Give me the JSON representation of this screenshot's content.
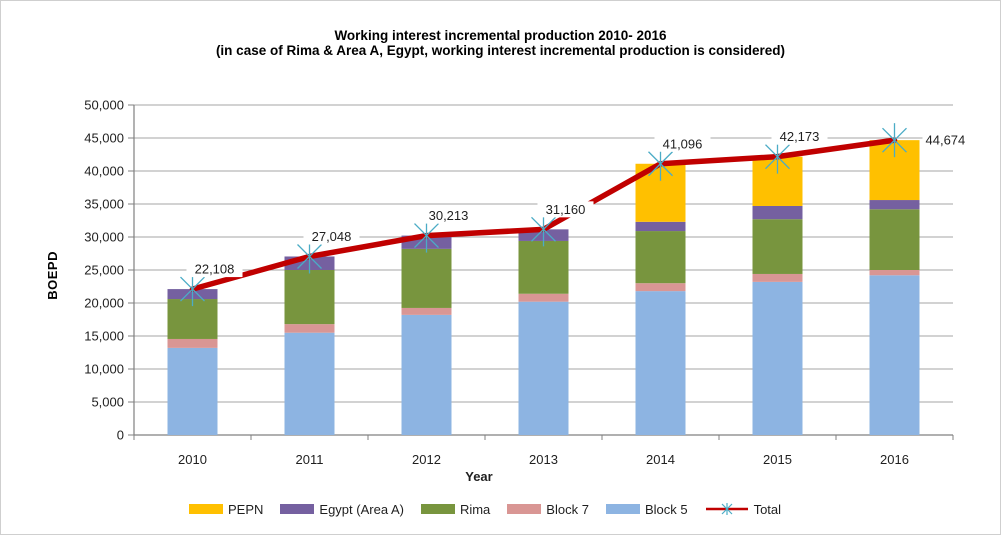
{
  "title": {
    "line1": "Working interest incremental production 2010- 2016",
    "line2": "(in case of Rima & Area A, Egypt, working interest incremental production is considered)"
  },
  "axes": {
    "y_title": "BOEPD",
    "x_title": "Year"
  },
  "chart_data": {
    "type": "bar",
    "subtype": "stacked-bars-with-total-line",
    "title": "Working interest incremental production 2010- 2016",
    "subtitle": "(in case of Rima & Area A, Egypt, working interest incremental production is considered)",
    "categories": [
      "2010",
      "2011",
      "2012",
      "2013",
      "2014",
      "2015",
      "2016"
    ],
    "series": [
      {
        "name": "Block 5",
        "color": "#8DB4E2",
        "values": [
          13200,
          15500,
          18200,
          20200,
          21800,
          23200,
          24200
        ]
      },
      {
        "name": "Block 7",
        "color": "#D99694",
        "values": [
          1350,
          1300,
          1050,
          1200,
          1200,
          1200,
          800
        ]
      },
      {
        "name": "Rima",
        "color": "#78953E",
        "values": [
          6050,
          8200,
          8950,
          8000,
          7900,
          8300,
          9200
        ]
      },
      {
        "name": "Egypt (Area A)",
        "color": "#7560A0",
        "values": [
          1508,
          2048,
          2013,
          1760,
          1400,
          2000,
          1400
        ]
      },
      {
        "name": "PEPN",
        "color": "#FFC000",
        "values": [
          0,
          0,
          0,
          0,
          8796,
          7473,
          9074
        ]
      }
    ],
    "line_series": {
      "name": "Total",
      "color": "#C00000",
      "marker_color": "#4BACC6",
      "values": [
        22108,
        27048,
        30213,
        31160,
        41096,
        42173,
        44674
      ],
      "labels": [
        "22,108",
        "27,048",
        "30,213",
        "31,160",
        "41,096",
        "42,173",
        "44,674"
      ]
    },
    "xlabel": "Year",
    "ylabel": "BOEPD",
    "ylim": [
      0,
      50000
    ],
    "ytick_step": 5000,
    "y_tick_labels": [
      "0",
      "5,000",
      "10,000",
      "15,000",
      "20,000",
      "25,000",
      "30,000",
      "35,000",
      "40,000",
      "45,000",
      "50,000"
    ],
    "grid": true,
    "grid_color": "#A6A6A6",
    "axis_color": "#808080",
    "legend_position": "bottom"
  },
  "legend": {
    "items": [
      {
        "label": "PEPN",
        "color": "#FFC000",
        "type": "swatch"
      },
      {
        "label": "Egypt (Area A)",
        "color": "#7560A0",
        "type": "swatch"
      },
      {
        "label": "Rima",
        "color": "#78953E",
        "type": "swatch"
      },
      {
        "label": "Block 7",
        "color": "#D99694",
        "type": "swatch"
      },
      {
        "label": "Block 5",
        "color": "#8DB4E2",
        "type": "swatch"
      },
      {
        "label": "Total",
        "color": "#C00000",
        "marker_color": "#4BACC6",
        "type": "line-marker"
      }
    ]
  }
}
